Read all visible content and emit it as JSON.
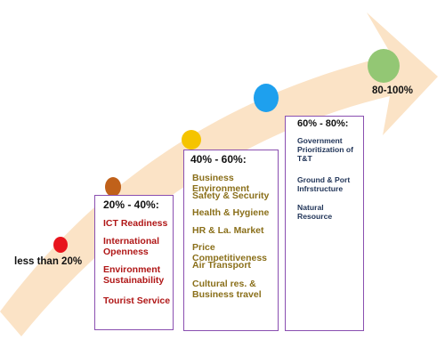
{
  "stages": [
    {
      "label": "less than 20%",
      "dot_color": "#e8141c"
    },
    {
      "label": "20% - 40%:",
      "dot_color": "#c0611a",
      "items": [
        "ICT Readiness",
        "International Openness",
        "Environment Sustainability",
        "Tourist Service"
      ],
      "item_color": "#b01717"
    },
    {
      "label": "40%  - 60%:",
      "dot_color": "#f5c400",
      "items": [
        "Business Environment",
        "Safety & Security",
        "Health & Hygiene",
        "HR & La. Market",
        "Price Competitiveness",
        "Air Transport",
        "Cultural res. & Business travel"
      ],
      "item_color": "#8a6f1a"
    },
    {
      "label": "60% - 80%:",
      "dot_color": "#1ea0ee",
      "items": [
        "Government Prioritization of T&T",
        "Ground & Port Infrstructure",
        "Natural Resource"
      ],
      "item_color": "#1f3357"
    },
    {
      "label": "80-100%",
      "dot_color": "#93c774"
    }
  ],
  "colors": {
    "arrow": "#fbe3c6",
    "box_border": "#8a4fb0"
  }
}
